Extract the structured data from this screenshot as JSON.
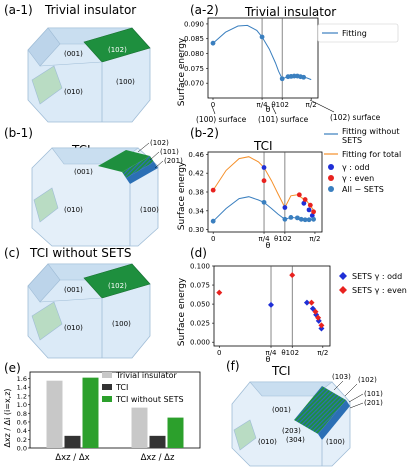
{
  "panels": {
    "a1": {
      "label": "(a-1)",
      "title": "Trivial insulator",
      "facets": [
        "(001)",
        "(102)",
        "(010)",
        "(100)"
      ]
    },
    "a2": {
      "label": "(a-2)"
    },
    "b1": {
      "label": "(b-1)",
      "title": "TCI",
      "facets": [
        "(001)",
        "(102)",
        "(101)",
        "(201)",
        "(010)",
        "(100)"
      ]
    },
    "b2": {
      "label": "(b-2)"
    },
    "c": {
      "label": "(c)",
      "title": "TCI without SETS",
      "facets": [
        "(001)",
        "(102)",
        "(010)",
        "(100)"
      ]
    },
    "d": {
      "label": "(d)"
    },
    "e": {
      "label": "(e)"
    },
    "f": {
      "label": "(f)",
      "title": "TCI",
      "facets": [
        "(103)",
        "(102)",
        "(101)",
        "(201)",
        "(001)",
        "(203)",
        "(304)",
        "(010)",
        "(100)"
      ]
    }
  },
  "colors": {
    "green": "#1e8f3e",
    "pale_green": "#b9dcc3",
    "blue_series": "#3a7fbf",
    "orange_fit": "#f5902a",
    "red": "#e8221f",
    "deep_blue": "#1f2fd6",
    "gray_bar": "#c8c8c8",
    "dark_bar": "#333333",
    "green_bar": "#2ca02c",
    "crystal_fill": "#dbeaf7",
    "crystal_edge": "#9fbcd6"
  },
  "chart_data": [
    {
      "id": "a2",
      "type": "scatter",
      "title": "Trivial insulator",
      "ylabel": "Surface energy",
      "xlabel": "θ",
      "ylim": [
        0.065,
        0.092
      ],
      "xlim": [
        -0.08,
        1.68
      ],
      "yticks": [
        0.07,
        0.075,
        0.08,
        0.085,
        0.09
      ],
      "ytick_labels": [
        "0.070",
        "0.075",
        "0.080",
        "0.085",
        "0.090"
      ],
      "xticks": [
        0,
        0.785,
        1.107,
        1.571
      ],
      "xtick_labels": [
        "0",
        "π/4",
        "θ102",
        "π/2"
      ],
      "vlines": [
        0.785,
        1.107
      ],
      "points": [
        {
          "x": 0,
          "y": 0.0835
        },
        {
          "x": 0.785,
          "y": 0.0856
        },
        {
          "x": 1.107,
          "y": 0.0715
        },
        {
          "x": 1.2,
          "y": 0.0722
        },
        {
          "x": 1.25,
          "y": 0.0723
        },
        {
          "x": 1.3,
          "y": 0.0724
        },
        {
          "x": 1.35,
          "y": 0.0724
        },
        {
          "x": 1.4,
          "y": 0.0722
        },
        {
          "x": 1.45,
          "y": 0.072
        }
      ],
      "fit": [
        [
          0,
          0.0835
        ],
        [
          0.2,
          0.0872
        ],
        [
          0.4,
          0.0893
        ],
        [
          0.55,
          0.0895
        ],
        [
          0.7,
          0.0878
        ],
        [
          0.785,
          0.0856
        ],
        [
          0.9,
          0.0815
        ],
        [
          1.0,
          0.0768
        ],
        [
          1.05,
          0.074
        ],
        [
          1.107,
          0.0715
        ],
        [
          1.2,
          0.0722
        ],
        [
          1.35,
          0.0724
        ],
        [
          1.5,
          0.0718
        ],
        [
          1.571,
          0.0712
        ]
      ],
      "legend": [
        "Fitting"
      ],
      "annotations": [
        "(100) surface",
        "(101) surface",
        "(102) surface"
      ]
    },
    {
      "id": "b2",
      "type": "scatter",
      "title": "TCI",
      "ylabel": "Surface energy",
      "xlabel": "θ",
      "ylim": [
        0.295,
        0.465
      ],
      "xlim": [
        -0.08,
        1.68
      ],
      "yticks": [
        0.3,
        0.34,
        0.38,
        0.42,
        0.46
      ],
      "ytick_labels": [
        "0.30",
        "0.34",
        "0.38",
        "0.42",
        "0.46"
      ],
      "xticks": [
        0,
        0.785,
        1.107,
        1.571
      ],
      "xtick_labels": [
        "0",
        "π/4",
        "θ102",
        "π/2"
      ],
      "vlines": [
        0.785,
        1.107
      ],
      "series": [
        {
          "name": "γ : odd",
          "color": "#1f2fd6",
          "points": [
            {
              "x": 0.785,
              "y": 0.432
            },
            {
              "x": 1.107,
              "y": 0.347
            },
            {
              "x": 1.4,
              "y": 0.356
            },
            {
              "x": 1.48,
              "y": 0.342
            },
            {
              "x": 1.53,
              "y": 0.33
            }
          ]
        },
        {
          "name": "γ : even",
          "color": "#e8221f",
          "points": [
            {
              "x": 0,
              "y": 0.384
            },
            {
              "x": 0.785,
              "y": 0.404
            },
            {
              "x": 1.33,
              "y": 0.374
            },
            {
              "x": 1.42,
              "y": 0.364
            },
            {
              "x": 1.5,
              "y": 0.352
            },
            {
              "x": 1.55,
              "y": 0.338
            }
          ]
        },
        {
          "name": "All − SETS",
          "color": "#3a7fbf",
          "points": [
            {
              "x": 0,
              "y": 0.318
            },
            {
              "x": 0.785,
              "y": 0.358
            },
            {
              "x": 1.107,
              "y": 0.322
            },
            {
              "x": 1.2,
              "y": 0.326
            },
            {
              "x": 1.3,
              "y": 0.325
            },
            {
              "x": 1.36,
              "y": 0.322
            },
            {
              "x": 1.42,
              "y": 0.321
            },
            {
              "x": 1.48,
              "y": 0.321
            },
            {
              "x": 1.55,
              "y": 0.322
            }
          ]
        }
      ],
      "fit_sets": [
        [
          0,
          0.318
        ],
        [
          0.2,
          0.345
        ],
        [
          0.4,
          0.366
        ],
        [
          0.55,
          0.37
        ],
        [
          0.7,
          0.363
        ],
        [
          0.785,
          0.358
        ],
        [
          0.9,
          0.345
        ],
        [
          1.0,
          0.333
        ],
        [
          1.107,
          0.322
        ],
        [
          1.2,
          0.326
        ],
        [
          1.35,
          0.324
        ],
        [
          1.571,
          0.321
        ]
      ],
      "fit_total": [
        [
          0,
          0.384
        ],
        [
          0.2,
          0.426
        ],
        [
          0.4,
          0.451
        ],
        [
          0.55,
          0.455
        ],
        [
          0.7,
          0.444
        ],
        [
          0.785,
          0.432
        ],
        [
          0.9,
          0.404
        ],
        [
          1.0,
          0.376
        ],
        [
          1.107,
          0.347
        ],
        [
          1.2,
          0.372
        ],
        [
          1.3,
          0.374
        ],
        [
          1.45,
          0.36
        ],
        [
          1.571,
          0.338
        ]
      ],
      "legend": [
        "Fitting without SETS",
        "Fitting for total",
        "γ : odd",
        "γ : even",
        "All − SETS"
      ]
    },
    {
      "id": "d",
      "type": "scatter",
      "ylabel": "Surface energy",
      "xlabel": "θ",
      "ylim": [
        -0.005,
        0.1
      ],
      "xlim": [
        -0.08,
        1.68
      ],
      "yticks": [
        0.0,
        0.025,
        0.05,
        0.075,
        0.1
      ],
      "ytick_labels": [
        "0.000",
        "0.025",
        "0.050",
        "0.075",
        "0.100"
      ],
      "xticks": [
        0,
        0.785,
        1.107,
        1.571
      ],
      "xtick_labels": [
        "0",
        "π/4",
        "θ102",
        "π/2"
      ],
      "vlines": [
        0.785,
        1.107
      ],
      "series": [
        {
          "name": "SETS γ : odd",
          "color": "#1f2fd6",
          "points": [
            {
              "x": 0.785,
              "y": 0.049
            },
            {
              "x": 1.33,
              "y": 0.052
            },
            {
              "x": 1.42,
              "y": 0.044
            },
            {
              "x": 1.47,
              "y": 0.036
            },
            {
              "x": 1.51,
              "y": 0.028
            },
            {
              "x": 1.55,
              "y": 0.018
            }
          ]
        },
        {
          "name": "SETS γ : even",
          "color": "#e8221f",
          "points": [
            {
              "x": 0,
              "y": 0.065
            },
            {
              "x": 1.107,
              "y": 0.088
            },
            {
              "x": 1.4,
              "y": 0.052
            },
            {
              "x": 1.46,
              "y": 0.04
            },
            {
              "x": 1.5,
              "y": 0.032
            },
            {
              "x": 1.55,
              "y": 0.022
            }
          ]
        }
      ],
      "legend": [
        "SETS γ : odd",
        "SETS γ : even"
      ]
    },
    {
      "id": "e",
      "type": "bar",
      "ylabel": "Δxz / Δi (i=x,z)",
      "ylim": [
        0,
        1.75
      ],
      "yticks": [
        0.0,
        0.2,
        0.4,
        0.6,
        0.8,
        1.0,
        1.2,
        1.4,
        1.6
      ],
      "ytick_labels": [
        "0.0",
        "0.2",
        "0.4",
        "0.6",
        "0.8",
        "1.0",
        "1.2",
        "1.4",
        "1.6"
      ],
      "categories": [
        "Δxz / Δx",
        "Δxz / Δz"
      ],
      "series": [
        {
          "name": "Trivial insulator",
          "color": "#c8c8c8",
          "values": [
            1.55,
            0.93
          ]
        },
        {
          "name": "TCI",
          "color": "#333333",
          "values": [
            0.28,
            0.28
          ]
        },
        {
          "name": "TCI without SETS",
          "color": "#2ca02c",
          "values": [
            1.62,
            0.7
          ]
        }
      ]
    }
  ]
}
